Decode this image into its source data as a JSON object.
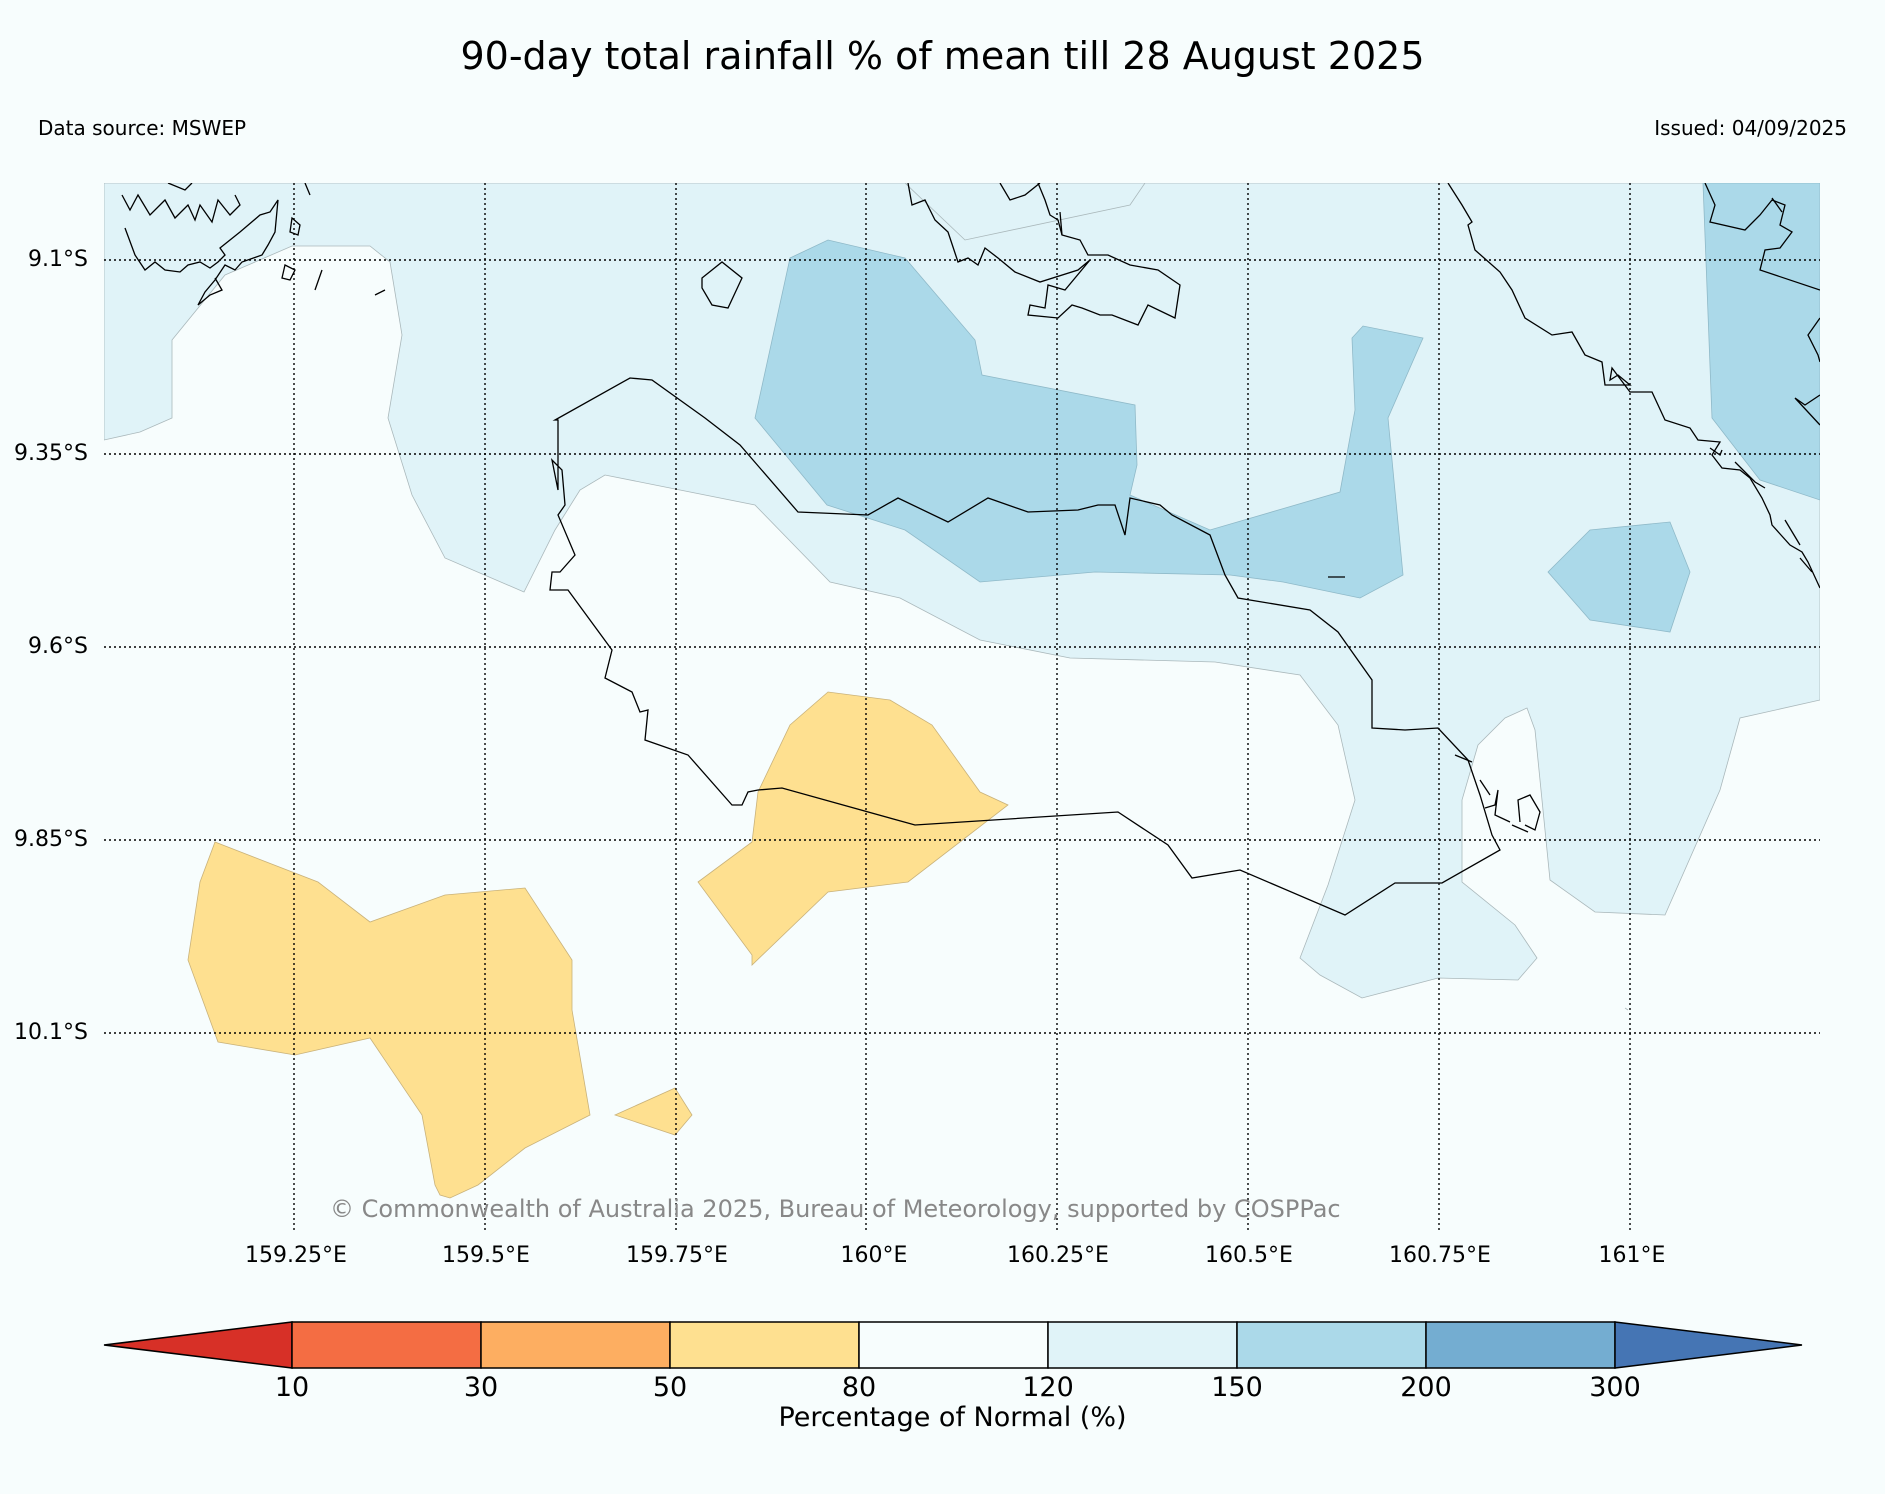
{
  "title": "90-day total rainfall % of mean till 28 August 2025",
  "data_source": "Data source: MSWEP",
  "issued": "Issued: 04/09/2025",
  "copyright": "© Commonwealth of Australia 2025, Bureau of Meteorology, supported by COSPPac",
  "map": {
    "lat_labels": [
      "9.1°S",
      "9.35°S",
      "9.6°S",
      "9.85°S",
      "10.1°S"
    ],
    "lon_labels": [
      "159.25°E",
      "159.5°E",
      "159.75°E",
      "160°E",
      "160.25°E",
      "160.5°E",
      "160.75°E",
      "161°E"
    ],
    "gridlines": "dotted"
  },
  "colorbar": {
    "label": "Percentage of Normal (%)",
    "ticks": [
      "10",
      "30",
      "50",
      "80",
      "120",
      "150",
      "200",
      "300"
    ],
    "colors": [
      "#d73027",
      "#f46d43",
      "#fdae61",
      "#fee090",
      "#f7fdfd",
      "#e0f3f8",
      "#abd9e9",
      "#74add1",
      "#4575b4"
    ],
    "extend": "both"
  }
}
